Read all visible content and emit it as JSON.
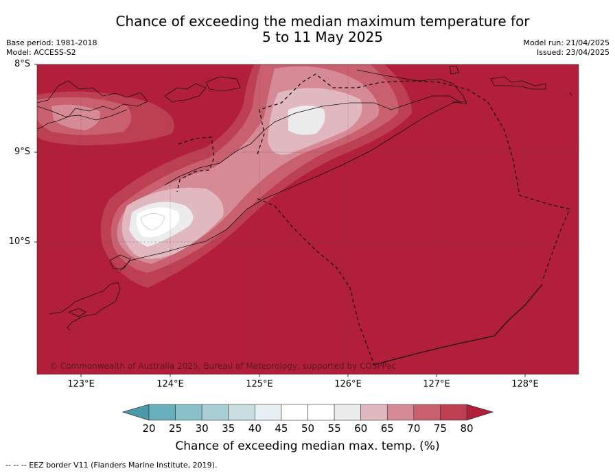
{
  "title": {
    "line1": "Chance of exceeding the median maximum temperature for",
    "line2": "5 to 11 May 2025"
  },
  "meta_left": {
    "base_period": "Base period: 1981-2018",
    "model": "Model: ACCESS-S2"
  },
  "meta_right": {
    "model_run": "Model run: 21/04/2025",
    "issued": "Issued: 23/04/2025"
  },
  "map": {
    "lat_labels": [
      "8°S",
      "9°S",
      "10°S"
    ],
    "lon_labels": [
      "123°E",
      "124°E",
      "125°E",
      "126°E",
      "127°E",
      "128°E"
    ],
    "copyright": "© Commonwealth of Australia 2025, Bureau of Meteorology, supported by COSPPac",
    "background_color": "#b21f3a"
  },
  "colorbar": {
    "ticks": [
      "20",
      "25",
      "30",
      "35",
      "40",
      "45",
      "50",
      "55",
      "60",
      "65",
      "70",
      "75",
      "80"
    ],
    "colors": [
      "#4b9aa9",
      "#6aafbd",
      "#89c0ca",
      "#a9cfd4",
      "#c7dde1",
      "#e6eff1",
      "#ffffff",
      "#ffffff",
      "#ececec",
      "#e1b8c0",
      "#d58a96",
      "#c8606f",
      "#bd4052",
      "#b21f3a"
    ],
    "label": "Chance of exceeding median max. temp. (%)"
  },
  "footer": "--  --  -- EEZ border V11 (Flanders Marine Institute, 2019)."
}
